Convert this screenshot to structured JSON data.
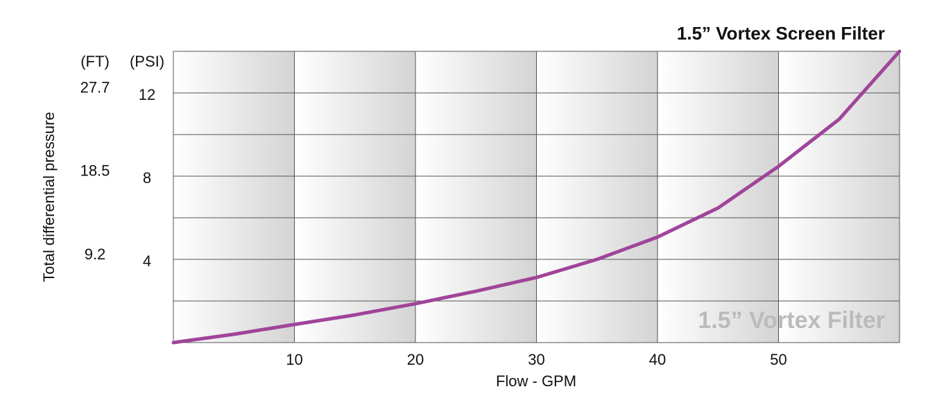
{
  "chart_data": {
    "type": "line",
    "title": "1.5” Vortex Screen Filter",
    "watermark": "1.5” Vortex Filter",
    "x_label": "Flow - GPM",
    "y_label": "Total differential pressure",
    "y_unit": "(PSI)",
    "y2_unit": "(FT)",
    "x": [
      0,
      5,
      10,
      15,
      20,
      25,
      30,
      35,
      40,
      45,
      50,
      55,
      60
    ],
    "series": [
      {
        "name": "1.5” Vortex Filter",
        "color": "#a0449a",
        "values": [
          0,
          0.4,
          0.87,
          1.33,
          1.87,
          2.47,
          3.13,
          4.0,
          5.07,
          6.47,
          8.47,
          10.73,
          14
        ]
      }
    ],
    "xlim": [
      0,
      60
    ],
    "xticks": [
      10,
      20,
      30,
      40,
      50
    ],
    "ylim": [
      0,
      14
    ],
    "yticks": [
      4,
      8,
      12
    ],
    "minor_yticks": [
      2,
      6,
      10
    ],
    "y2lim": [
      0,
      32.3
    ],
    "y2ticks": [
      9.2,
      18.5,
      27.7
    ],
    "grid": true
  }
}
